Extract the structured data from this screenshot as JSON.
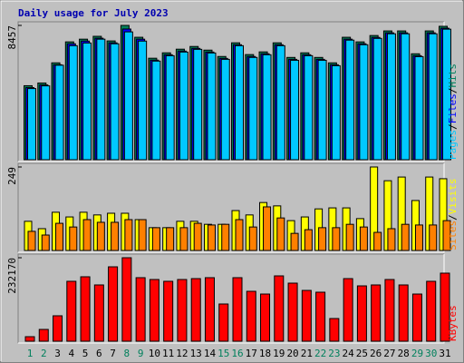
{
  "chart_data": [
    {
      "type": "bar",
      "title": "Daily usage for July 2023",
      "title_color": "#0000B0",
      "categories": [
        "1",
        "2",
        "3",
        "4",
        "5",
        "6",
        "7",
        "8",
        "9",
        "10",
        "11",
        "12",
        "13",
        "14",
        "15",
        "16",
        "17",
        "18",
        "19",
        "20",
        "21",
        "22",
        "23",
        "24",
        "25",
        "26",
        "27",
        "28",
        "29",
        "30",
        "31"
      ],
      "category_colors": [
        "#00805C",
        "#00805C",
        "#000000",
        "#000000",
        "#000000",
        "#000000",
        "#000000",
        "#00805C",
        "#00805C",
        "#000000",
        "#000000",
        "#000000",
        "#000000",
        "#000000",
        "#00805C",
        "#00805C",
        "#000000",
        "#000000",
        "#000000",
        "#000000",
        "#000000",
        "#00805C",
        "#00805C",
        "#000000",
        "#000000",
        "#000000",
        "#000000",
        "#000000",
        "#00805C",
        "#00805C",
        "#000000"
      ],
      "legend_separator": "/",
      "ylim": [
        0,
        8457
      ],
      "yticks": [
        8457
      ],
      "series": [
        {
          "name": "Hits",
          "color": "#00805C",
          "values": [
            4660,
            4830,
            6100,
            7420,
            7590,
            7770,
            7480,
            8457,
            7710,
            6390,
            6730,
            6960,
            7130,
            6900,
            6500,
            7360,
            6620,
            6790,
            7360,
            6440,
            6730,
            6440,
            6100,
            7710,
            7420,
            7820,
            8110,
            8110,
            6670,
            8110,
            8400
          ]
        },
        {
          "name": "Files",
          "color": "#0000FF",
          "values": [
            4540,
            4710,
            5980,
            7300,
            7470,
            7650,
            7360,
            8230,
            7590,
            6270,
            6610,
            6840,
            7010,
            6780,
            6380,
            7240,
            6500,
            6670,
            7240,
            6320,
            6610,
            6320,
            5980,
            7590,
            7300,
            7700,
            7990,
            7990,
            6550,
            7990,
            8280
          ]
        },
        {
          "name": "Pages",
          "color": "#00C8FF",
          "values": [
            4480,
            4650,
            5950,
            7180,
            7350,
            7590,
            7300,
            8050,
            7470,
            6210,
            6550,
            6780,
            6950,
            6720,
            6320,
            7180,
            6440,
            6610,
            7180,
            6260,
            6550,
            6260,
            5920,
            7530,
            7240,
            7640,
            7930,
            7930,
            6490,
            7930,
            8220
          ]
        }
      ]
    },
    {
      "type": "bar",
      "ylim": [
        0,
        249
      ],
      "yticks": [
        249
      ],
      "series": [
        {
          "name": "Visits",
          "color": "#FFFF00",
          "values": [
            87,
            65,
            114,
            100,
            114,
            106,
            111,
            111,
            92,
            68,
            68,
            87,
            87,
            78,
            78,
            119,
            106,
            143,
            133,
            89,
            100,
            124,
            127,
            127,
            95,
            249,
            208,
            219,
            149,
            219,
            214
          ]
        },
        {
          "name": "Sites",
          "color": "#FF8000",
          "values": [
            57,
            46,
            81,
            70,
            92,
            84,
            84,
            92,
            92,
            68,
            68,
            68,
            81,
            76,
            78,
            92,
            70,
            130,
            97,
            51,
            62,
            68,
            68,
            78,
            70,
            54,
            65,
            78,
            76,
            76,
            89
          ]
        }
      ]
    },
    {
      "type": "bar",
      "ylim": [
        0,
        232170
      ],
      "yticks": [
        232170
      ],
      "series": [
        {
          "name": "KBytes",
          "color": "#FF0000",
          "values": [
            12600,
            32800,
            70700,
            166600,
            179200,
            156500,
            206900,
            232170,
            176700,
            171600,
            166600,
            171600,
            174100,
            176700,
            103500,
            176700,
            138800,
            131200,
            181700,
            161500,
            141300,
            136300,
            63100,
            174100,
            153900,
            156500,
            171600,
            156500,
            131200,
            166600,
            189300
          ]
        }
      ]
    }
  ]
}
